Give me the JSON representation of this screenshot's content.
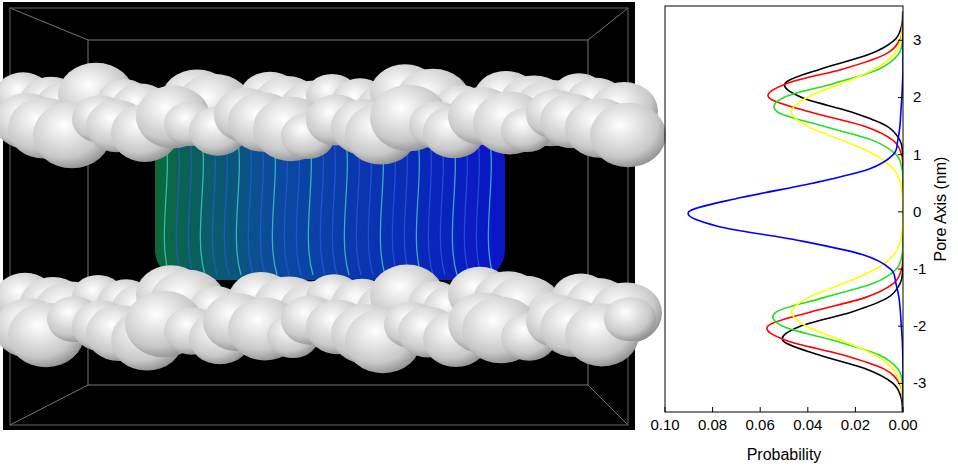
{
  "chart_data": {
    "type": "line",
    "orientation": "horizontal",
    "x_label": "Pore Axis (nm)",
    "y_label": "Probability",
    "x": [
      -3.5,
      -3.25,
      -3,
      -2.75,
      -2.5,
      -2.25,
      -2,
      -1.75,
      -1.5,
      -1.25,
      -1,
      -0.75,
      -0.5,
      -0.25,
      0,
      0.25,
      0.5,
      0.75,
      1,
      1.25,
      1.5,
      1.75,
      2,
      2.25,
      2.5,
      2.75,
      3,
      3.25,
      3.5
    ],
    "xlim": [
      -3.5,
      3.6
    ],
    "xticks": [
      -3,
      -2,
      -1,
      0,
      1,
      2,
      3
    ],
    "ylim": [
      0.1,
      0
    ],
    "yticks": [
      {
        "value": 0.1,
        "label": "0.10"
      },
      0.08,
      0.06,
      0.04,
      0.02,
      {
        "value": 0,
        "label": "0.00"
      }
    ],
    "grid": false,
    "series": [
      {
        "color": "#000000",
        "values": [
          0.0002,
          0.0008,
          0.0042,
          0.0155,
          0.0355,
          0.0505,
          0.0432,
          0.0215,
          0.0064,
          0.0012,
          0.0001,
          0,
          0,
          0,
          0,
          0,
          0,
          0,
          0.0001,
          0.0013,
          0.0068,
          0.022,
          0.0425,
          0.0495,
          0.0345,
          0.0145,
          0.0037,
          0.0006,
          0.0001
        ]
      },
      {
        "color": "#ff0000",
        "values": [
          0,
          0.0002,
          0.0015,
          0.0079,
          0.0255,
          0.049,
          0.0568,
          0.0388,
          0.016,
          0.004,
          0.0006,
          0.0001,
          0,
          0,
          0,
          0,
          0,
          0.0001,
          0.0006,
          0.0042,
          0.0165,
          0.0393,
          0.0564,
          0.0485,
          0.0251,
          0.0077,
          0.0014,
          0.0002,
          0
        ]
      },
      {
        "color": "#22e022",
        "values": [
          0,
          0,
          0.0002,
          0.0021,
          0.0102,
          0.029,
          0.0505,
          0.0532,
          0.0332,
          0.0124,
          0.0028,
          0.0004,
          0,
          0,
          0,
          0,
          0,
          0.0004,
          0.0029,
          0.0127,
          0.0336,
          0.0528,
          0.0501,
          0.0286,
          0.0099,
          0.002,
          0.0002,
          0,
          0
        ]
      },
      {
        "color": "#ffff00",
        "values": [
          0,
          0.0002,
          0.0011,
          0.0042,
          0.012,
          0.0256,
          0.0405,
          0.0468,
          0.0398,
          0.0248,
          0.0115,
          0.0039,
          0.001,
          0.0002,
          0,
          0.0002,
          0.001,
          0.004,
          0.0118,
          0.0254,
          0.0403,
          0.047,
          0.0403,
          0.0254,
          0.0118,
          0.004,
          0.001,
          0.0002,
          0
        ]
      },
      {
        "color": "#0000ff",
        "values": [
          0,
          0,
          0,
          0,
          0.0001,
          0.0003,
          0.0007,
          0.0011,
          0.0017,
          0.003,
          0.0052,
          0.0168,
          0.0438,
          0.078,
          0.09,
          0.068,
          0.038,
          0.0142,
          0.0041,
          0.0022,
          0.0013,
          0.0009,
          0.0005,
          0.0002,
          0,
          0,
          0,
          0,
          0
        ]
      }
    ]
  }
}
